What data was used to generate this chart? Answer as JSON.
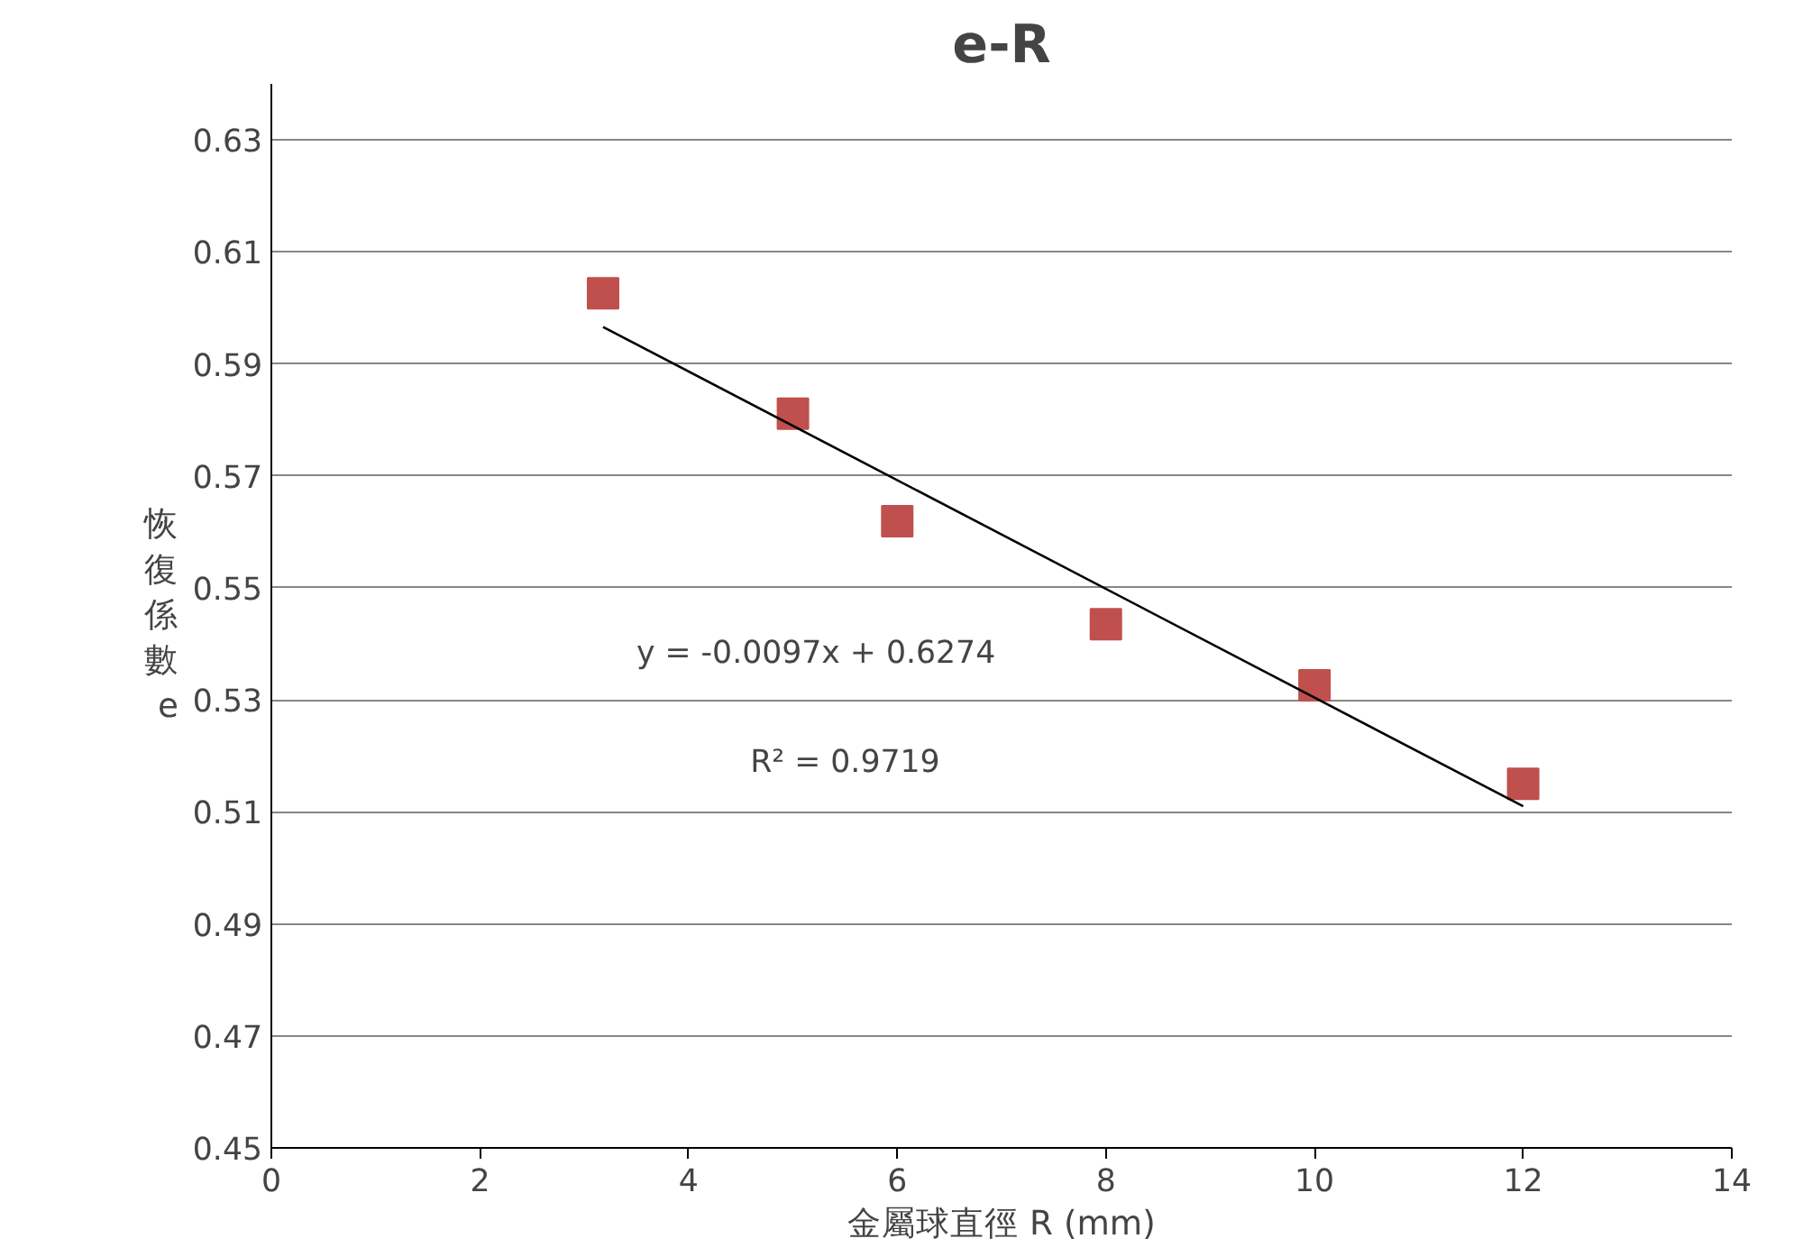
{
  "chart_data": {
    "type": "scatter",
    "title": "e-R",
    "xlabel": "金屬球直徑 R (mm)",
    "ylabel": "恢復係數e",
    "xlim": [
      0,
      14
    ],
    "xticks": [
      0,
      2,
      4,
      6,
      8,
      10,
      12,
      14
    ],
    "ylim": [
      0.45,
      0.64
    ],
    "yticks": [
      0.45,
      0.47,
      0.49,
      0.51,
      0.53,
      0.55,
      0.57,
      0.59,
      0.61,
      0.63
    ],
    "grid": "y",
    "marker": "square",
    "series": [
      {
        "color": "#c0504d",
        "x": [
          3.18,
          5,
          6,
          8,
          10,
          12
        ],
        "values": [
          0.6026,
          0.5811,
          0.5619,
          0.5435,
          0.5326,
          0.515
        ]
      },
      {
        "type": "line",
        "color": "#000000",
        "line_style": "solid",
        "marker": "none",
        "x": [
          3.18,
          12
        ],
        "values": [
          0.5966,
          0.511
        ]
      }
    ],
    "annotations": [
      "y = -0.0097x + 0.6274",
      "R² = 0.9719"
    ]
  }
}
